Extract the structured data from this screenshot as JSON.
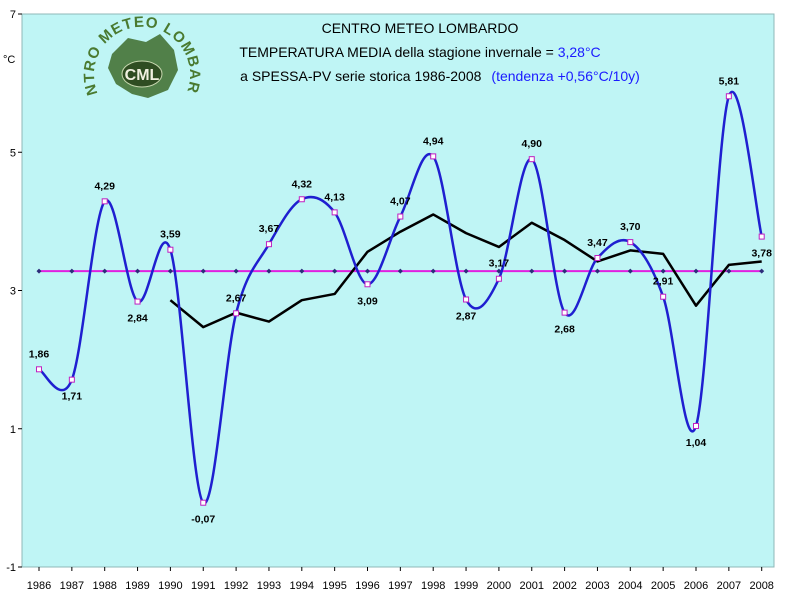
{
  "chart_data": {
    "type": "line",
    "title": {
      "line1": "CENTRO METEO LOMBARDO",
      "line2_prefix": "TEMPERATURA MEDIA della stagione invernale = ",
      "line2_value": "3,28°C",
      "line3_prefix": "a SPESSA-PV serie storica 1986-2008",
      "line3_trend": "(tendenza +0,56°C/10y)"
    },
    "ylabel": "°C",
    "ylim": [
      -1,
      7
    ],
    "yticks": [
      -1,
      1,
      3,
      5,
      7
    ],
    "x": [
      1986,
      1987,
      1988,
      1989,
      1990,
      1991,
      1992,
      1993,
      1994,
      1995,
      1996,
      1997,
      1998,
      1999,
      2000,
      2001,
      2002,
      2003,
      2004,
      2005,
      2006,
      2007,
      2008
    ],
    "series": [
      {
        "kind": "temperature",
        "color": "#1f1fd0",
        "values": [
          1.86,
          1.71,
          4.29,
          2.84,
          3.59,
          -0.07,
          2.67,
          3.67,
          4.32,
          4.13,
          3.09,
          4.07,
          4.94,
          2.87,
          3.17,
          4.9,
          2.68,
          3.47,
          3.7,
          2.91,
          1.04,
          5.81,
          3.78
        ],
        "labels": [
          "1,86",
          "1,71",
          "4,29",
          "2,84",
          "3,59",
          "-0,07",
          "2,67",
          "3,67",
          "4,32",
          "4,13",
          "3,09",
          "4,07",
          "4,94",
          "2,87",
          "3,17",
          "4,90",
          "2,68",
          "3,47",
          "3,70",
          "2,91",
          "1,04",
          "5,81",
          "3,78"
        ]
      },
      {
        "kind": "moving-average",
        "color": "#000000",
        "x": [
          1990,
          1991,
          1992,
          1993,
          1994,
          1995,
          1996,
          1997,
          1998,
          1999,
          2000,
          2001,
          2002,
          2003,
          2004,
          2005,
          2006,
          2007,
          2008
        ],
        "values": [
          2.86,
          2.47,
          2.68,
          2.55,
          2.86,
          2.95,
          3.56,
          3.85,
          4.1,
          3.83,
          3.63,
          3.98,
          3.73,
          3.42,
          3.58,
          3.53,
          2.78,
          3.37,
          3.42
        ]
      },
      {
        "kind": "mean",
        "color": "#e020e0",
        "value": 3.28
      }
    ],
    "grid": false,
    "legend": "none",
    "background": "#bff5f5",
    "logo": {
      "text_arc": "CENTRO METEO LOMBARDO",
      "text_center": "CML",
      "icon": "lombardy-map-icon"
    }
  }
}
